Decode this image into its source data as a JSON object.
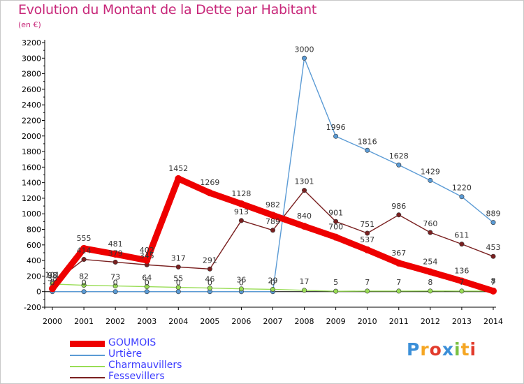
{
  "chart_data": {
    "type": "line",
    "title": "Evolution du Montant de la Dette par Habitant",
    "subtitle": "(en €)",
    "xlabel": "",
    "ylabel": "",
    "categories": [
      "2000",
      "2001",
      "2002",
      "2003",
      "2004",
      "2005",
      "2006",
      "2007",
      "2008",
      "2009",
      "2010",
      "2011",
      "2012",
      "2013",
      "2014"
    ],
    "ylim": [
      -200,
      3200
    ],
    "yticks": [
      -200,
      0,
      200,
      400,
      600,
      800,
      1000,
      1200,
      1400,
      1600,
      1800,
      2000,
      2200,
      2400,
      2600,
      2800,
      3000,
      3200
    ],
    "grid": false,
    "legend_position": "bottom-left",
    "series": [
      {
        "name": "GOUMOIS",
        "color": "#ee0000",
        "values": [
          38,
          555,
          481,
          402,
          1452,
          1269,
          1128,
          982,
          840,
          700,
          537,
          367,
          254,
          136,
          8
        ],
        "labels": [
          "38",
          "555",
          "481",
          "402",
          "1452",
          "1269",
          "1128",
          "982",
          "840",
          "700",
          "537",
          "367",
          "254",
          "136",
          "8"
        ]
      },
      {
        "name": "Urtière",
        "color": "#5b9bd5",
        "values": [
          0,
          0,
          0,
          0,
          0,
          0,
          0,
          0,
          3000,
          1996,
          1816,
          1628,
          1429,
          1220,
          889
        ],
        "labels": [
          "0",
          "0",
          "0",
          "0",
          "0",
          "0",
          "0",
          "0",
          "3000",
          "1996",
          "1816",
          "1628",
          "1429",
          "1220",
          "889"
        ]
      },
      {
        "name": "Charmauvillers",
        "color": "#99dd55",
        "values": [
          98,
          82,
          73,
          64,
          55,
          46,
          36,
          29,
          17,
          5,
          7,
          7,
          8,
          7,
          7
        ],
        "labels": [
          "98",
          "82",
          "73",
          "64",
          "55",
          "46",
          "36",
          "29",
          "17",
          "5",
          "7",
          "7",
          "8",
          "7",
          "7"
        ]
      },
      {
        "name": "Fessevillers",
        "color": "#7a2020",
        "values": [
          101,
          414,
          379,
          345,
          317,
          291,
          913,
          789,
          1301,
          901,
          751,
          986,
          760,
          611,
          453
        ],
        "labels": [
          "101",
          "414",
          "379",
          "345",
          "317",
          "291",
          "913",
          "789",
          "1301",
          "901",
          "751",
          "986",
          "760",
          "611",
          "453"
        ]
      }
    ]
  },
  "colors": {
    "title": "#c8287a",
    "subtitle": "#c8287a",
    "axis": "#000000",
    "legend_text": "#3c3cff",
    "value_label": "#333333"
  },
  "brand": {
    "letters": [
      "P",
      "r",
      "o",
      "x",
      "i",
      "t",
      "i"
    ],
    "letter_colors": [
      "#3b8fd8",
      "#f5a623",
      "#e23b2c",
      "#3b8fd8",
      "#7ac143",
      "#f5a623",
      "#e23b2c"
    ]
  }
}
